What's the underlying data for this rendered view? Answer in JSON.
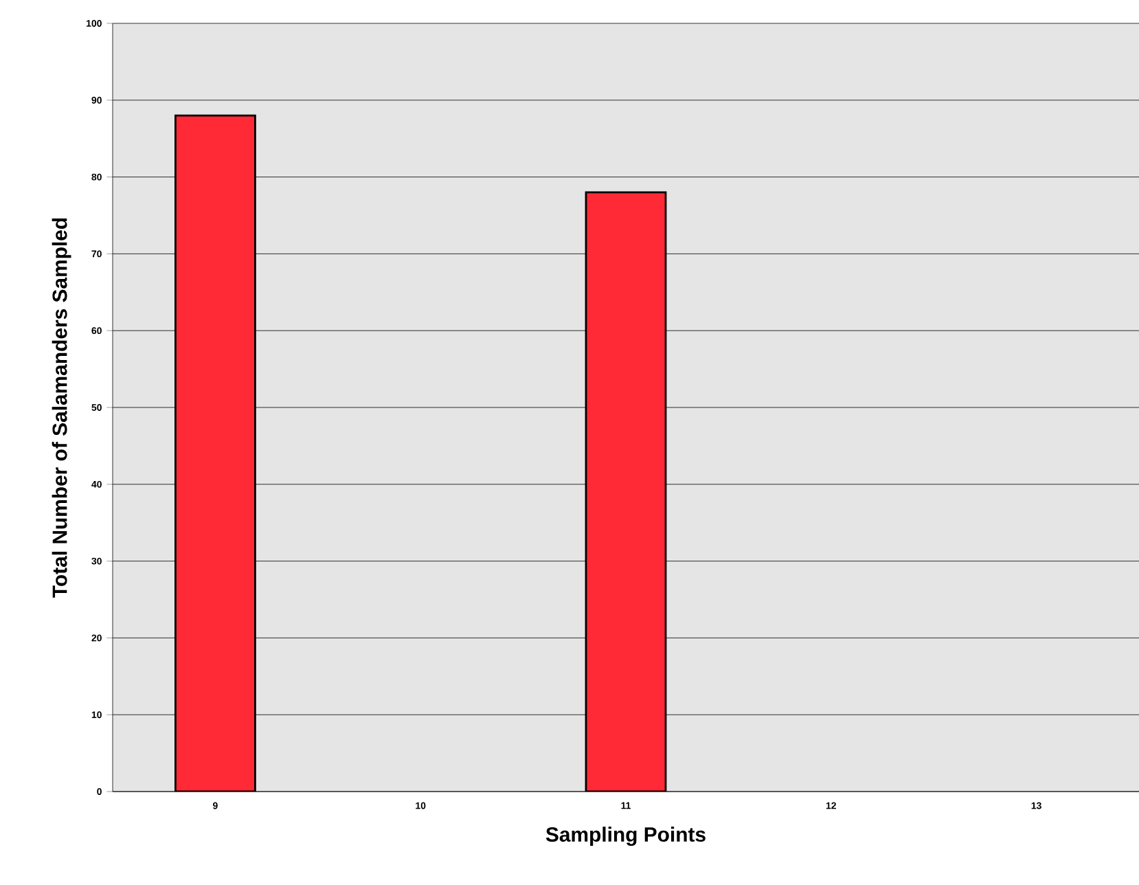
{
  "chart_data": {
    "type": "bar",
    "xlabel": "Sampling Points",
    "ylabel": "Total Number of Salamanders Sampled",
    "categories": [
      "9",
      "10",
      "11",
      "12",
      "13"
    ],
    "values": [
      88,
      null,
      78,
      null,
      null
    ],
    "color": "#ff2a35",
    "ylim": [
      0,
      100
    ],
    "yticks": [
      0,
      10,
      20,
      30,
      40,
      50,
      60,
      70,
      80,
      90,
      100
    ],
    "grid": "y"
  }
}
